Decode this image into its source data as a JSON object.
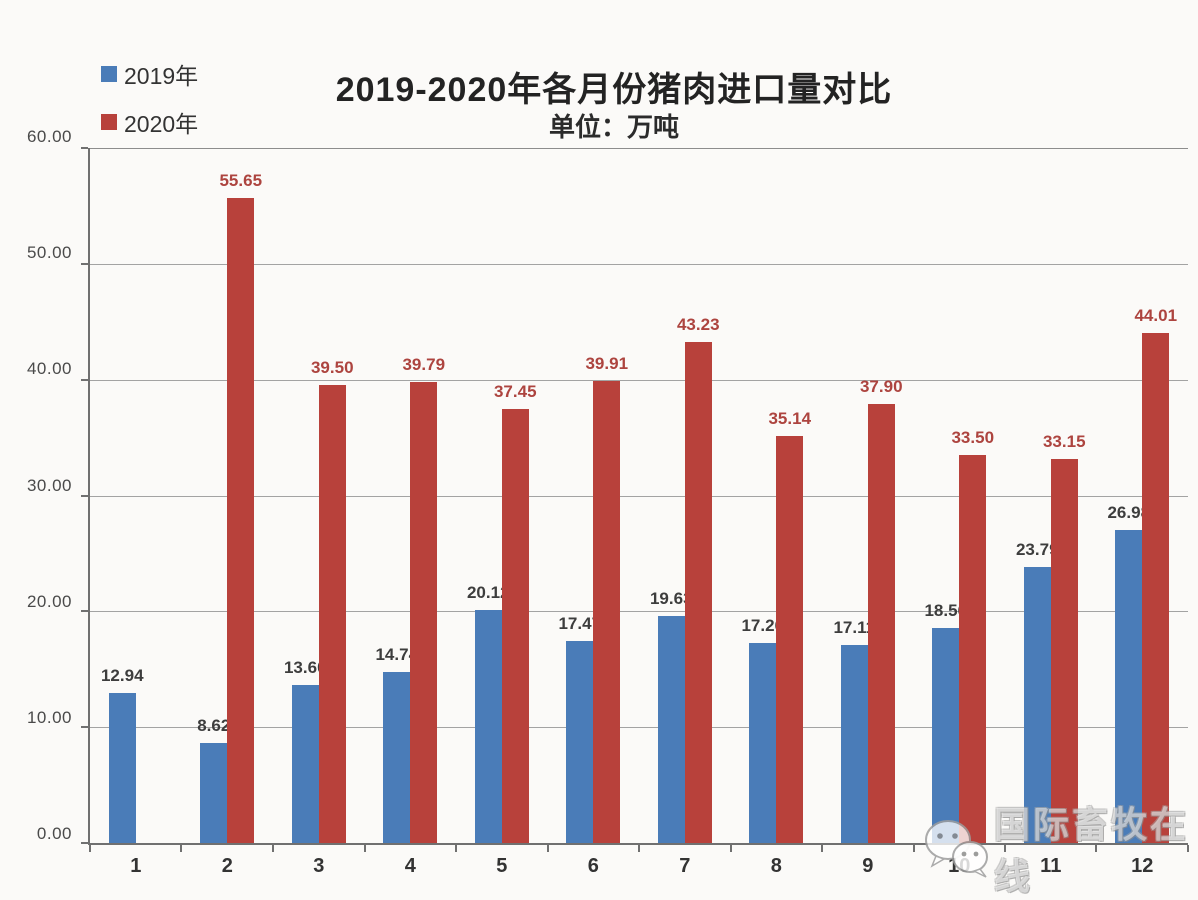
{
  "chart_data": {
    "type": "bar",
    "title": "2019-2020年各月份猪肉进口量对比",
    "subtitle": "单位：万吨",
    "categories": [
      "1",
      "2",
      "3",
      "4",
      "5",
      "6",
      "7",
      "8",
      "9",
      "10",
      "11",
      "12"
    ],
    "series": [
      {
        "name": "2019年",
        "color": "#4a7cb8",
        "label_color": "#3d3d3d",
        "values": [
          12.94,
          8.62,
          13.6,
          14.74,
          20.12,
          17.47,
          19.63,
          17.26,
          17.11,
          18.56,
          23.79,
          26.98
        ]
      },
      {
        "name": "2020年",
        "color": "#b8413b",
        "label_color": "#ad443f",
        "values": [
          null,
          55.65,
          39.5,
          39.79,
          37.45,
          39.91,
          43.23,
          35.14,
          37.9,
          33.5,
          33.15,
          44.01
        ]
      }
    ],
    "ylim": [
      0,
      60
    ],
    "ytick_step": 10,
    "ytick_labels": [
      "0.00",
      "10.00",
      "20.00",
      "30.00",
      "40.00",
      "50.00",
      "60.00"
    ],
    "grid": true,
    "legend_position": "top-left"
  },
  "watermark": {
    "icon": "wechat-icon",
    "text": "国际畜牧在线"
  }
}
